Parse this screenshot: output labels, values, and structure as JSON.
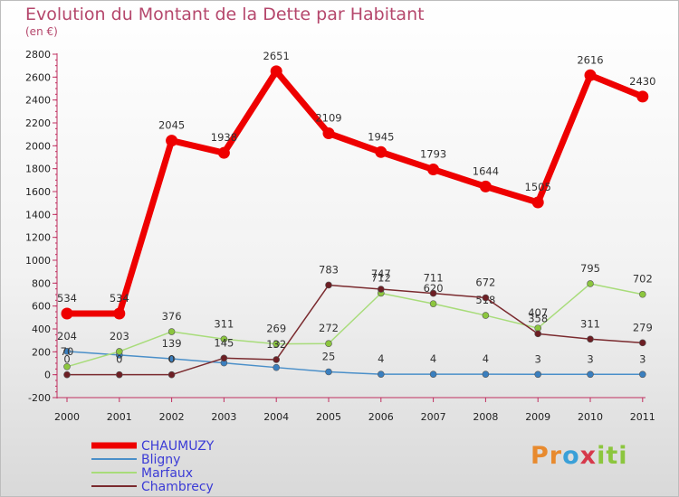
{
  "title": "Evolution du Montant de la Dette par Habitant",
  "subtitle": "(en €)",
  "logo": {
    "text": "Proxiti"
  },
  "chart_data": {
    "type": "line",
    "categories": [
      "2000",
      "2001",
      "2002",
      "2003",
      "2004",
      "2005",
      "2006",
      "2007",
      "2008",
      "2009",
      "2010",
      "2011"
    ],
    "ylim": [
      -200,
      2800
    ],
    "yticks": [
      -200,
      0,
      200,
      400,
      600,
      800,
      1000,
      1200,
      1400,
      1600,
      1800,
      2000,
      2200,
      2400,
      2600,
      2800
    ],
    "grid": false,
    "legend_position": "bottom-left",
    "series": [
      {
        "name": "Bligny",
        "color": "#4a8fc9",
        "marker": "#3a7fbf",
        "width": 1.5,
        "values": [
          204,
          172,
          139,
          103,
          63,
          25,
          4,
          4,
          4,
          3,
          3,
          3
        ],
        "labels": [
          "204",
          "",
          "139",
          "",
          "",
          "25",
          "4",
          "4",
          "4",
          "3",
          "3",
          "3"
        ]
      },
      {
        "name": "Marfaux",
        "color": "#a8dc7a",
        "marker": "#8cc63e",
        "width": 1.5,
        "values": [
          70,
          203,
          376,
          311,
          269,
          272,
          712,
          620,
          518,
          407,
          795,
          702
        ],
        "labels": [
          "70",
          "203",
          "376",
          "311",
          "269",
          "272",
          "712",
          "620",
          "518",
          "407",
          "795",
          "702"
        ]
      },
      {
        "name": "Chambrecy",
        "color": "#7a2a2e",
        "marker": "#6d1f24",
        "width": 1.5,
        "values": [
          0,
          0,
          0,
          145,
          132,
          783,
          747,
          711,
          672,
          358,
          311,
          279
        ],
        "labels": [
          "0",
          "0",
          "0",
          "145",
          "132",
          "783",
          "747",
          "711",
          "672",
          "358",
          "311",
          "279"
        ]
      },
      {
        "name": "CHAUMUZY",
        "color": "#ee0000",
        "marker": "#ee0000",
        "width": 7,
        "values": [
          534,
          534,
          2045,
          1938,
          2651,
          2109,
          1945,
          1793,
          1644,
          1505,
          2616,
          2430
        ],
        "labels": [
          "534",
          "534",
          "2045",
          "1938",
          "2651",
          "2109",
          "1945",
          "1793",
          "1644",
          "1505",
          "2616",
          "2430"
        ]
      }
    ],
    "legend": [
      "CHAUMUZY",
      "Bligny",
      "Marfaux",
      "Chambrecy"
    ]
  }
}
